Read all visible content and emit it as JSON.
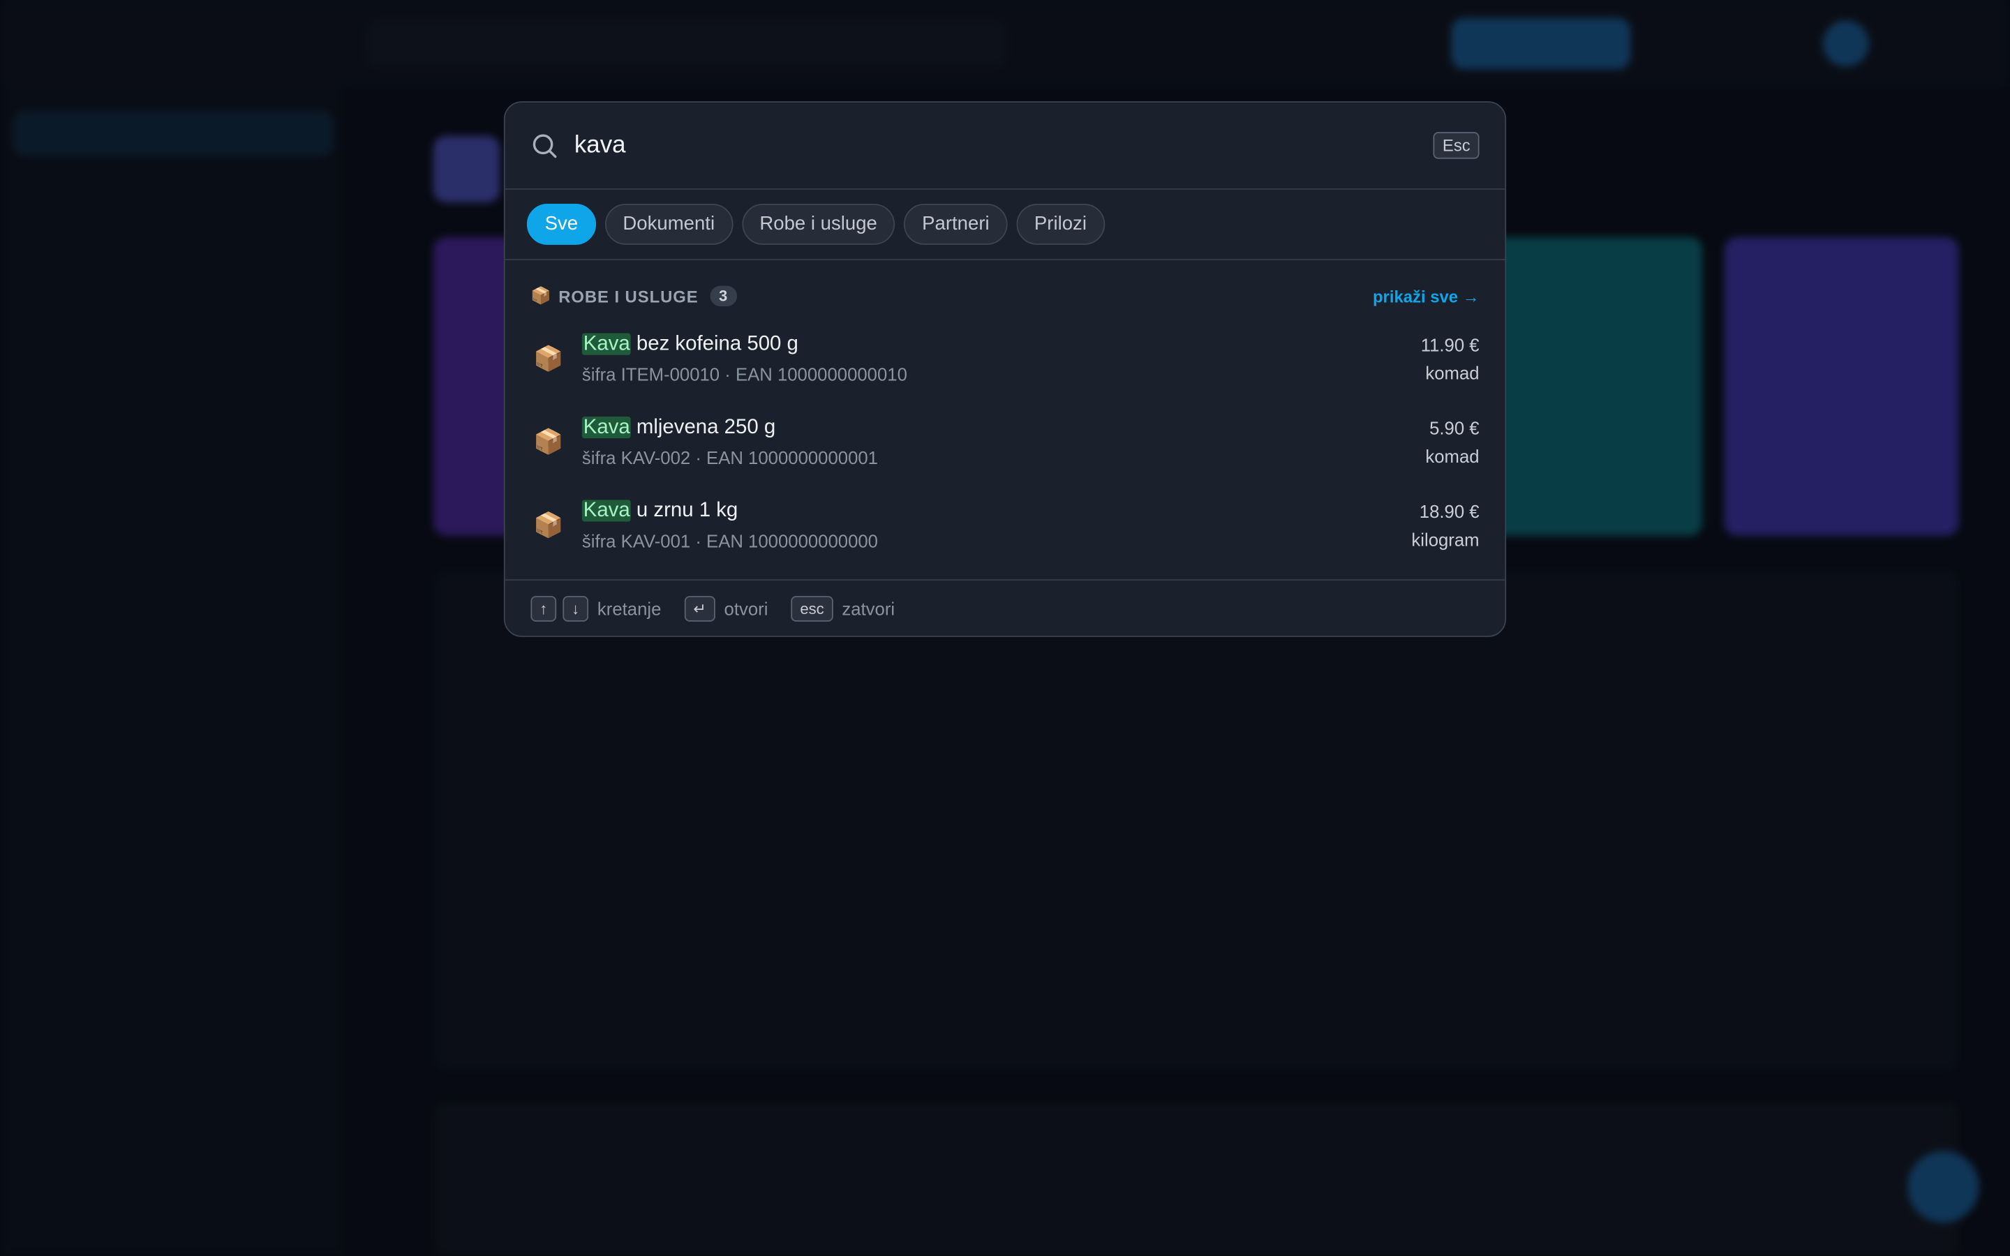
{
  "search": {
    "query": "kava",
    "esc": "Esc"
  },
  "tabs": [
    "Sve",
    "Dokumenti",
    "Robe i usluge",
    "Partneri",
    "Prilozi"
  ],
  "active_tab": 0,
  "section": {
    "icon": "📦",
    "title": "ROBE I USLUGE",
    "count": 3,
    "link": "prikaži sve →"
  },
  "items": [
    {
      "icon": "📦",
      "highlight": "Kava",
      "name": "bez kofeina 500 g",
      "meta": "šifra ITEM-00010 · EAN 1000000000010",
      "price": "11.90 €",
      "unit": "komad"
    },
    {
      "icon": "📦",
      "highlight": "Kava",
      "name": "mljevena 250 g",
      "meta": "šifra KAV-002 · EAN 1000000000001",
      "price": "5.90 €",
      "unit": "komad"
    },
    {
      "icon": "📦",
      "highlight": "Kava",
      "name": "u zrnu 1 kg",
      "meta": "šifra KAV-001 · EAN 1000000000000",
      "price": "18.90 €",
      "unit": "kilogram"
    }
  ],
  "hints": [
    {
      "keys": [
        "↑",
        "↓"
      ],
      "label": "kretanje"
    },
    {
      "keys": [
        "↵"
      ],
      "label": "otvori"
    },
    {
      "keys": [
        "esc"
      ],
      "label": "zatvori"
    }
  ]
}
